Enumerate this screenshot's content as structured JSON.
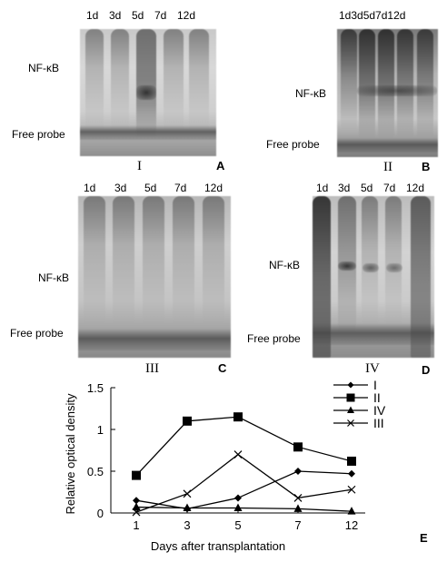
{
  "panels": {
    "A": {
      "letter": "A",
      "roman": "I",
      "lanes": [
        "1d",
        "3d",
        "5d",
        "7d",
        "12d"
      ],
      "nfkb": "NF-κB",
      "free_probe": "Free probe"
    },
    "B": {
      "letter": "B",
      "roman": "II",
      "lanes_text": "1d3d5d7d12d",
      "nfkb": "NF-κB",
      "free_probe": "Free probe"
    },
    "C": {
      "letter": "C",
      "roman": "III",
      "lanes": [
        "1d",
        "3d",
        "5d",
        "7d",
        "12d"
      ],
      "nfkb": "NF-κB",
      "free_probe": "Free probe"
    },
    "D": {
      "letter": "D",
      "roman": "IV",
      "lanes": [
        "1d",
        "3d",
        "5d",
        "7d",
        "12d"
      ],
      "nfkb": "NF-κB",
      "free_probe": "Free probe"
    },
    "E": {
      "letter": "E"
    }
  },
  "chart_data": {
    "type": "line",
    "categories": [
      "1",
      "3",
      "5",
      "7",
      "12"
    ],
    "xlabel": "Days after transplantation",
    "ylabel": "Relative optical density",
    "ylim": [
      0,
      1.5
    ],
    "yticks": [
      "0",
      "0.5",
      "1",
      "1.5"
    ],
    "series": [
      {
        "name": "I",
        "marker": "diamond",
        "values": [
          0.15,
          0.05,
          0.18,
          0.5,
          0.47
        ]
      },
      {
        "name": "II",
        "marker": "square",
        "values": [
          0.45,
          1.1,
          1.15,
          0.79,
          0.62
        ]
      },
      {
        "name": "IV",
        "marker": "triangle",
        "values": [
          0.07,
          0.06,
          0.06,
          0.05,
          0.02
        ]
      },
      {
        "name": "III",
        "marker": "x",
        "values": [
          0.01,
          0.23,
          0.7,
          0.18,
          0.28
        ]
      }
    ],
    "legend": "top-right"
  }
}
